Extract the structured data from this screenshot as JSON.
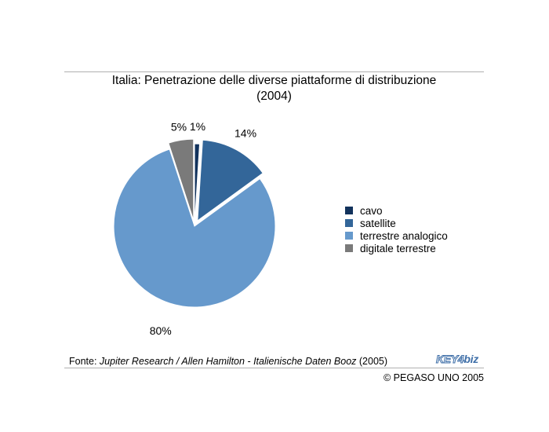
{
  "chart_data": {
    "type": "pie",
    "title_line1": "Italia: Penetrazione delle diverse piattaforme di distribuzione",
    "title_line2": "(2004)",
    "slices": [
      {
        "label": "cavo",
        "value": 1,
        "display": "1%",
        "color": "#12325c"
      },
      {
        "label": "satellite",
        "value": 14,
        "display": "14%",
        "color": "#336699"
      },
      {
        "label": "terrestre analogico",
        "value": 80,
        "display": "80%",
        "color": "#6699cc"
      },
      {
        "label": "digitale terrestre",
        "value": 5,
        "display": "5%",
        "color": "#7a7a7a"
      }
    ],
    "legend_position": "right"
  },
  "footer": {
    "source_prefix": "Fonte: ",
    "source_italic": "Jupiter Research / Allen Hamilton - Italienische Daten Booz",
    "source_suffix": " (2005)",
    "logo_left": "KEY4",
    "logo_right": "biz",
    "copyright": "© PEGASO UNO 2005"
  }
}
